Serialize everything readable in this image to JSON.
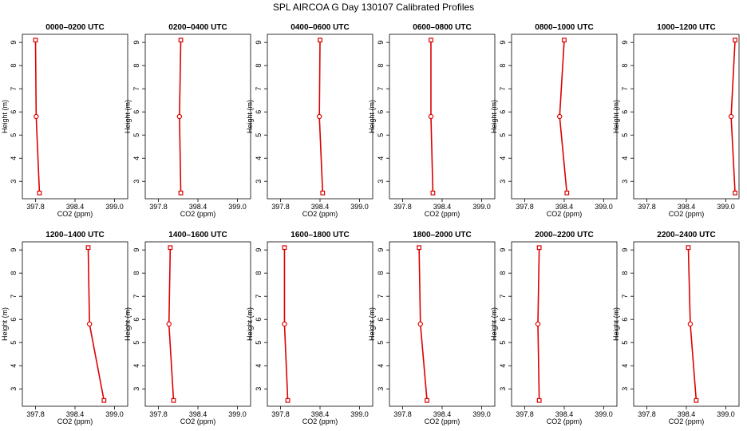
{
  "figure": {
    "title": "SPL AIRCOA G  Day 130107  Calibrated Profiles"
  },
  "chart_data": [
    {
      "type": "line",
      "title": "0000–0200 UTC",
      "xlabel": "CO2 (ppm)",
      "ylabel": "Height (m)",
      "xlim": [
        397.6,
        399.2
      ],
      "ylim": [
        2.25,
        9.35
      ],
      "xticks": [
        "397.8",
        "398.4",
        "399.0"
      ],
      "yticks": [
        "3",
        "4",
        "5",
        "6",
        "7",
        "8",
        "9"
      ],
      "x": [
        397.86,
        397.81,
        397.8
      ],
      "y": [
        2.5,
        5.8,
        9.1
      ]
    },
    {
      "type": "line",
      "title": "0200–0400 UTC",
      "xlabel": "CO2 (ppm)",
      "ylabel": "Height (m)",
      "xlim": [
        397.6,
        399.2
      ],
      "ylim": [
        2.25,
        9.35
      ],
      "xticks": [
        "397.8",
        "398.4",
        "399.0"
      ],
      "yticks": [
        "3",
        "4",
        "5",
        "6",
        "7",
        "8",
        "9"
      ],
      "x": [
        398.14,
        398.12,
        398.14
      ],
      "y": [
        2.5,
        5.8,
        9.1
      ]
    },
    {
      "type": "line",
      "title": "0400–0600 UTC",
      "xlabel": "CO2 (ppm)",
      "ylabel": "Height (m)",
      "xlim": [
        397.6,
        399.2
      ],
      "ylim": [
        2.25,
        9.35
      ],
      "xticks": [
        "397.8",
        "398.4",
        "399.0"
      ],
      "yticks": [
        "3",
        "4",
        "5",
        "6",
        "7",
        "8",
        "9"
      ],
      "x": [
        398.44,
        398.39,
        398.4
      ],
      "y": [
        2.5,
        5.8,
        9.1
      ]
    },
    {
      "type": "line",
      "title": "0600–0800 UTC",
      "xlabel": "CO2 (ppm)",
      "ylabel": "Height (m)",
      "xlim": [
        397.6,
        399.2
      ],
      "ylim": [
        2.25,
        9.35
      ],
      "xticks": [
        "397.8",
        "398.4",
        "399.0"
      ],
      "yticks": [
        "3",
        "4",
        "5",
        "6",
        "7",
        "8",
        "9"
      ],
      "x": [
        398.26,
        398.23,
        398.23
      ],
      "y": [
        2.5,
        5.8,
        9.1
      ]
    },
    {
      "type": "line",
      "title": "0800–1000 UTC",
      "xlabel": "CO2 (ppm)",
      "ylabel": "Height (m)",
      "xlim": [
        397.6,
        399.2
      ],
      "ylim": [
        2.25,
        9.35
      ],
      "xticks": [
        "397.8",
        "398.4",
        "399.0"
      ],
      "yticks": [
        "3",
        "4",
        "5",
        "6",
        "7",
        "8",
        "9"
      ],
      "x": [
        398.44,
        398.33,
        398.4
      ],
      "y": [
        2.5,
        5.8,
        9.1
      ]
    },
    {
      "type": "line",
      "title": "1000–1200 UTC",
      "xlabel": "CO2 (ppm)",
      "ylabel": "Height (m)",
      "xlim": [
        397.6,
        399.2
      ],
      "ylim": [
        2.25,
        9.35
      ],
      "xticks": [
        "397.8",
        "398.4",
        "399.0"
      ],
      "yticks": [
        "3",
        "4",
        "5",
        "6",
        "7",
        "8",
        "9"
      ],
      "x": [
        399.14,
        399.08,
        399.14
      ],
      "y": [
        2.5,
        5.8,
        9.1
      ]
    },
    {
      "type": "line",
      "title": "1200–1400 UTC",
      "xlabel": "CO2 (ppm)",
      "ylabel": "Height (m)",
      "xlim": [
        397.6,
        399.2
      ],
      "ylim": [
        2.25,
        9.35
      ],
      "xticks": [
        "397.8",
        "398.4",
        "399.0"
      ],
      "yticks": [
        "3",
        "4",
        "5",
        "6",
        "7",
        "8",
        "9"
      ],
      "x": [
        398.84,
        398.62,
        398.6
      ],
      "y": [
        2.5,
        5.8,
        9.1
      ]
    },
    {
      "type": "line",
      "title": "1400–1600 UTC",
      "xlabel": "CO2 (ppm)",
      "ylabel": "Height (m)",
      "xlim": [
        397.6,
        399.2
      ],
      "ylim": [
        2.25,
        9.35
      ],
      "xticks": [
        "397.8",
        "398.4",
        "399.0"
      ],
      "yticks": [
        "3",
        "4",
        "5",
        "6",
        "7",
        "8",
        "9"
      ],
      "x": [
        398.03,
        397.96,
        397.98
      ],
      "y": [
        2.5,
        5.8,
        9.1
      ]
    },
    {
      "type": "line",
      "title": "1600–1800 UTC",
      "xlabel": "CO2 (ppm)",
      "ylabel": "Height (m)",
      "xlim": [
        397.6,
        399.2
      ],
      "ylim": [
        2.25,
        9.35
      ],
      "xticks": [
        "397.8",
        "398.4",
        "399.0"
      ],
      "yticks": [
        "3",
        "4",
        "5",
        "6",
        "7",
        "8",
        "9"
      ],
      "x": [
        397.91,
        397.86,
        397.86
      ],
      "y": [
        2.5,
        5.8,
        9.1
      ]
    },
    {
      "type": "line",
      "title": "1800–2000 UTC",
      "xlabel": "CO2 (ppm)",
      "ylabel": "Height (m)",
      "xlim": [
        397.6,
        399.2
      ],
      "ylim": [
        2.25,
        9.35
      ],
      "xticks": [
        "397.8",
        "398.4",
        "399.0"
      ],
      "yticks": [
        "3",
        "4",
        "5",
        "6",
        "7",
        "8",
        "9"
      ],
      "x": [
        398.17,
        398.07,
        398.05
      ],
      "y": [
        2.5,
        5.8,
        9.1
      ]
    },
    {
      "type": "line",
      "title": "2000–2200 UTC",
      "xlabel": "CO2 (ppm)",
      "ylabel": "Height (m)",
      "xlim": [
        397.6,
        399.2
      ],
      "ylim": [
        2.25,
        9.35
      ],
      "xticks": [
        "397.8",
        "398.4",
        "399.0"
      ],
      "yticks": [
        "3",
        "4",
        "5",
        "6",
        "7",
        "8",
        "9"
      ],
      "x": [
        398.02,
        398.0,
        398.02
      ],
      "y": [
        2.5,
        5.8,
        9.1
      ]
    },
    {
      "type": "line",
      "title": "2200–2400 UTC",
      "xlabel": "CO2 (ppm)",
      "ylabel": "Height (m)",
      "xlim": [
        397.6,
        399.2
      ],
      "ylim": [
        2.25,
        9.35
      ],
      "xticks": [
        "397.8",
        "398.4",
        "399.0"
      ],
      "yticks": [
        "3",
        "4",
        "5",
        "6",
        "7",
        "8",
        "9"
      ],
      "x": [
        398.55,
        398.46,
        398.43
      ],
      "y": [
        2.5,
        5.8,
        9.1
      ]
    }
  ],
  "colors": {
    "line": "#dd0000",
    "marker": "#dd0000",
    "axis": "#000000"
  }
}
